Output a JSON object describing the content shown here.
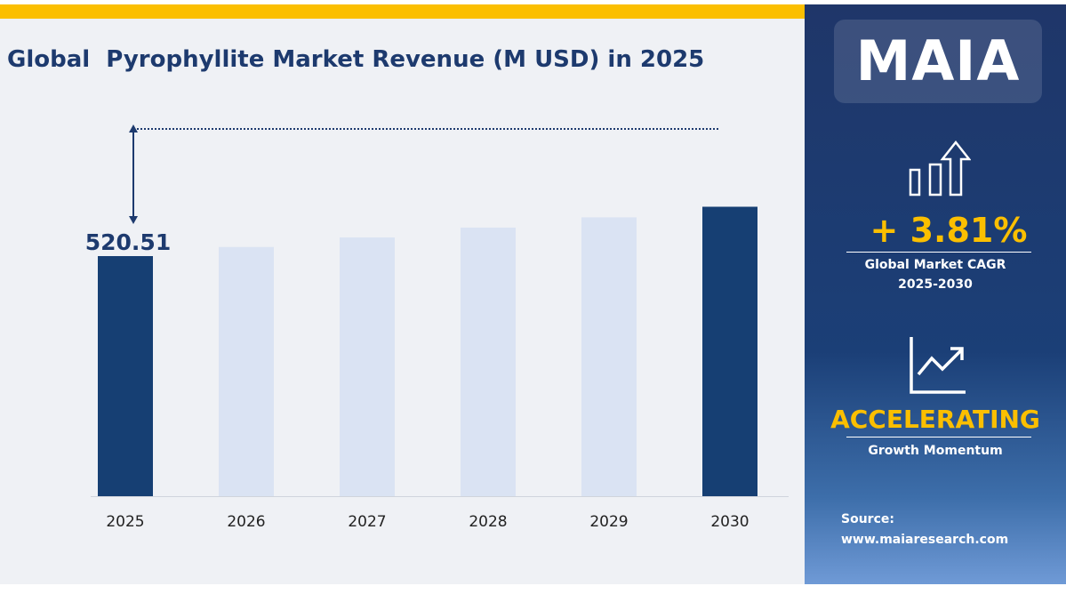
{
  "title": "Global  Pyrophyllite Market Revenue (M USD) in 2025",
  "chart_data": {
    "type": "bar",
    "title": "Global  Pyrophyllite Market Revenue (M USD) in 2025",
    "categories": [
      "2025",
      "2026",
      "2027",
      "2028",
      "2029",
      "2030"
    ],
    "values": [
      520.51,
      540.3,
      560.9,
      582.3,
      604.5,
      627.5
    ],
    "data_labels": {
      "2025": "520.51"
    },
    "highlight": [
      "2025",
      "2030"
    ],
    "colors": {
      "highlight": "#163f73",
      "normal": "#dae3f3"
    },
    "ylim": [
      0,
      650
    ],
    "grid": false
  },
  "sidebar": {
    "logo": "MAIA",
    "cagr_value": "+  3.81%",
    "cagr_label": "Global Market CAGR",
    "cagr_period": "2025-2030",
    "momentum_value": "ACCELERATING",
    "momentum_label": "Growth Momentum",
    "source_label": "Source:",
    "source_url": "www.maiaresearch.com",
    "icons": [
      "bar-chart-up-arrow-icon",
      "line-chart-trend-icon"
    ]
  },
  "colors": {
    "accent": "#fbbf00",
    "title": "#1d3a6e",
    "panel": "#1f3669"
  }
}
